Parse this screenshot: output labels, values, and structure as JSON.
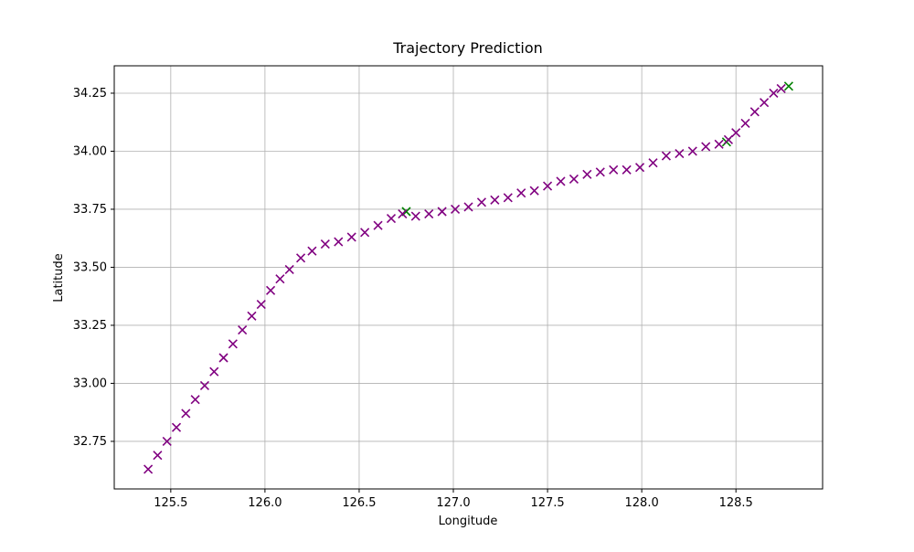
{
  "chart_data": {
    "type": "scatter",
    "title": "Trajectory Prediction",
    "x_label": "Longitude",
    "y_label": "Latitude",
    "xlim": [
      125.2,
      128.96
    ],
    "ylim": [
      32.545,
      34.368
    ],
    "xticks": [
      125.5,
      {
        "value": 126.0,
        "label": "126.0"
      },
      126.5,
      {
        "value": 127.0,
        "label": "127.0"
      },
      127.5,
      {
        "value": 128.0,
        "label": "128.0"
      },
      128.5
    ],
    "yticks": [
      32.75,
      {
        "value": 33.0,
        "label": "33.00"
      },
      33.25,
      {
        "value": 33.5,
        "label": "33.50"
      },
      33.75,
      {
        "value": 34.0,
        "label": "34.00"
      },
      34.25
    ],
    "grid": true,
    "marker": "x",
    "series": [
      {
        "color": "#008000",
        "x": [
          126.75,
          128.45,
          128.78
        ],
        "y": [
          33.74,
          34.04,
          34.28
        ]
      },
      {
        "color": "#800080",
        "x": [
          125.38,
          125.43,
          125.48,
          125.53,
          125.58,
          125.63,
          125.68,
          125.73,
          125.78,
          125.83,
          125.88,
          125.93,
          125.98,
          126.03,
          126.08,
          126.13,
          126.19,
          126.25,
          126.32,
          126.39,
          126.46,
          126.53,
          126.6,
          126.67,
          126.73,
          126.8,
          126.87,
          126.94,
          127.01,
          127.08,
          127.15,
          127.22,
          127.29,
          127.36,
          127.43,
          127.5,
          127.57,
          127.64,
          127.71,
          127.78,
          127.85,
          127.92,
          127.99,
          128.06,
          128.13,
          128.2,
          128.27,
          128.34,
          128.41,
          128.46,
          128.5,
          128.55,
          128.6,
          128.65,
          128.7,
          128.74
        ],
        "y": [
          32.63,
          32.69,
          32.75,
          32.81,
          32.87,
          32.93,
          32.99,
          33.05,
          33.11,
          33.17,
          33.23,
          33.29,
          33.34,
          33.4,
          33.45,
          33.49,
          33.54,
          33.57,
          33.6,
          33.61,
          33.63,
          33.65,
          33.68,
          33.71,
          33.73,
          33.72,
          33.73,
          33.74,
          33.75,
          33.76,
          33.78,
          33.79,
          33.8,
          33.82,
          33.83,
          33.85,
          33.87,
          33.88,
          33.9,
          33.91,
          33.92,
          33.92,
          33.93,
          33.95,
          33.98,
          33.99,
          34.0,
          34.02,
          34.03,
          34.05,
          34.08,
          34.12,
          34.17,
          34.21,
          34.25,
          34.27
        ]
      }
    ]
  }
}
